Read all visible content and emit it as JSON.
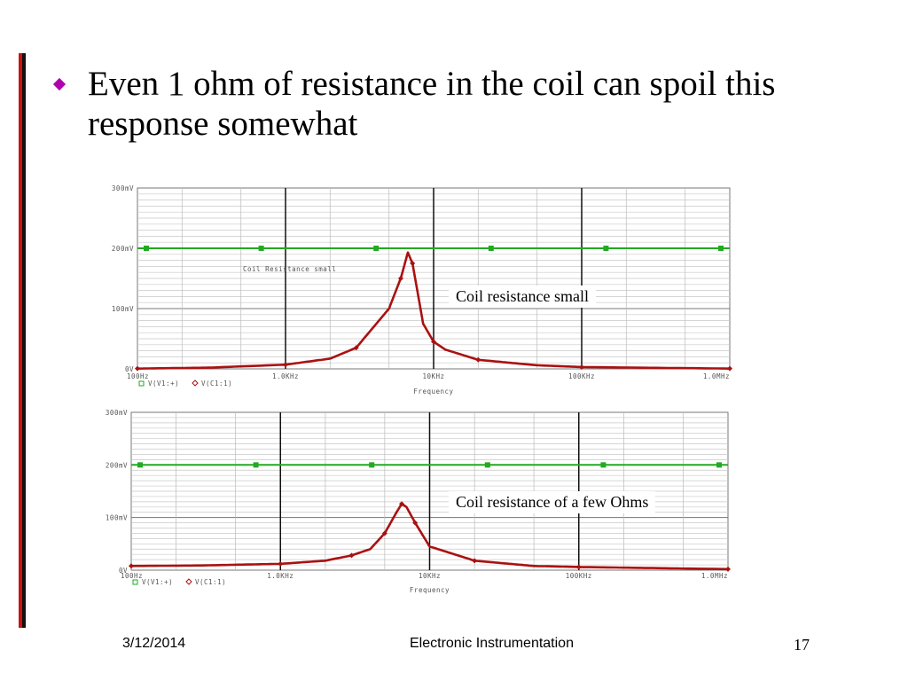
{
  "slide": {
    "bullet": "Even 1 ohm of resistance in the coil can spoil this response somewhat",
    "footer": {
      "date": "3/12/2014",
      "title": "Electronic Instrumentation",
      "page": "17"
    },
    "accent_colors": {
      "bar_red": "#cc1111",
      "bar_black": "#111111",
      "bullet": "#b000b0"
    }
  },
  "chart_data": [
    {
      "type": "line",
      "xscale": "log",
      "xlim": [
        100,
        1000000
      ],
      "ylim": [
        0,
        300
      ],
      "y_unit": "mV",
      "xticks": [
        "100Hz",
        "1.0KHz",
        "10KHz",
        "100KHz",
        "1.0MHz"
      ],
      "yticks": [
        "300mV",
        "200mV",
        "100mV",
        "0V"
      ],
      "xlabel": "Frequency",
      "legend": [
        "V(V1:+)",
        "V(C1:1)"
      ],
      "inner_label": "Coil Resistance small",
      "annotation": "Coil resistance small",
      "grid": true,
      "series": [
        {
          "name": "V(V1:+)",
          "color": "#22aa22",
          "marker": "square",
          "x": [
            100,
            1000000
          ],
          "y": [
            200,
            200
          ]
        },
        {
          "name": "V(C1:1)",
          "color": "#aa1111",
          "marker": "diamond",
          "x": [
            100,
            300,
            1000,
            2000,
            3000,
            5000,
            6000,
            6700,
            7200,
            8500,
            10000,
            12000,
            20000,
            50000,
            100000,
            1000000
          ],
          "y": [
            0.5,
            2,
            7,
            17,
            35,
            100,
            150,
            193,
            175,
            75,
            45,
            32,
            15,
            6,
            3,
            0.5
          ]
        }
      ]
    },
    {
      "type": "line",
      "xscale": "log",
      "xlim": [
        100,
        1000000
      ],
      "ylim": [
        0,
        300
      ],
      "y_unit": "mV",
      "xticks": [
        "100Hz",
        "1.0KHz",
        "10KHz",
        "100KHz",
        "1.0MHz"
      ],
      "yticks": [
        "300mV",
        "200mV",
        "100mV",
        "0V"
      ],
      "xlabel": "Frequency",
      "legend": [
        "V(V1:+)",
        "V(C1:1)"
      ],
      "annotation": "Coil resistance of a few Ohms",
      "grid": true,
      "series": [
        {
          "name": "V(V1:+)",
          "color": "#22aa22",
          "marker": "square",
          "x": [
            100,
            1000000
          ],
          "y": [
            200,
            200
          ]
        },
        {
          "name": "V(C1:1)",
          "color": "#aa1111",
          "marker": "diamond",
          "x": [
            100,
            300,
            1000,
            2000,
            3000,
            4000,
            5000,
            6000,
            6500,
            7000,
            8000,
            10000,
            20000,
            50000,
            100000,
            1000000
          ],
          "y": [
            8,
            9,
            12,
            18,
            28,
            40,
            70,
            110,
            126,
            120,
            90,
            45,
            18,
            8,
            6,
            2
          ]
        }
      ]
    }
  ]
}
